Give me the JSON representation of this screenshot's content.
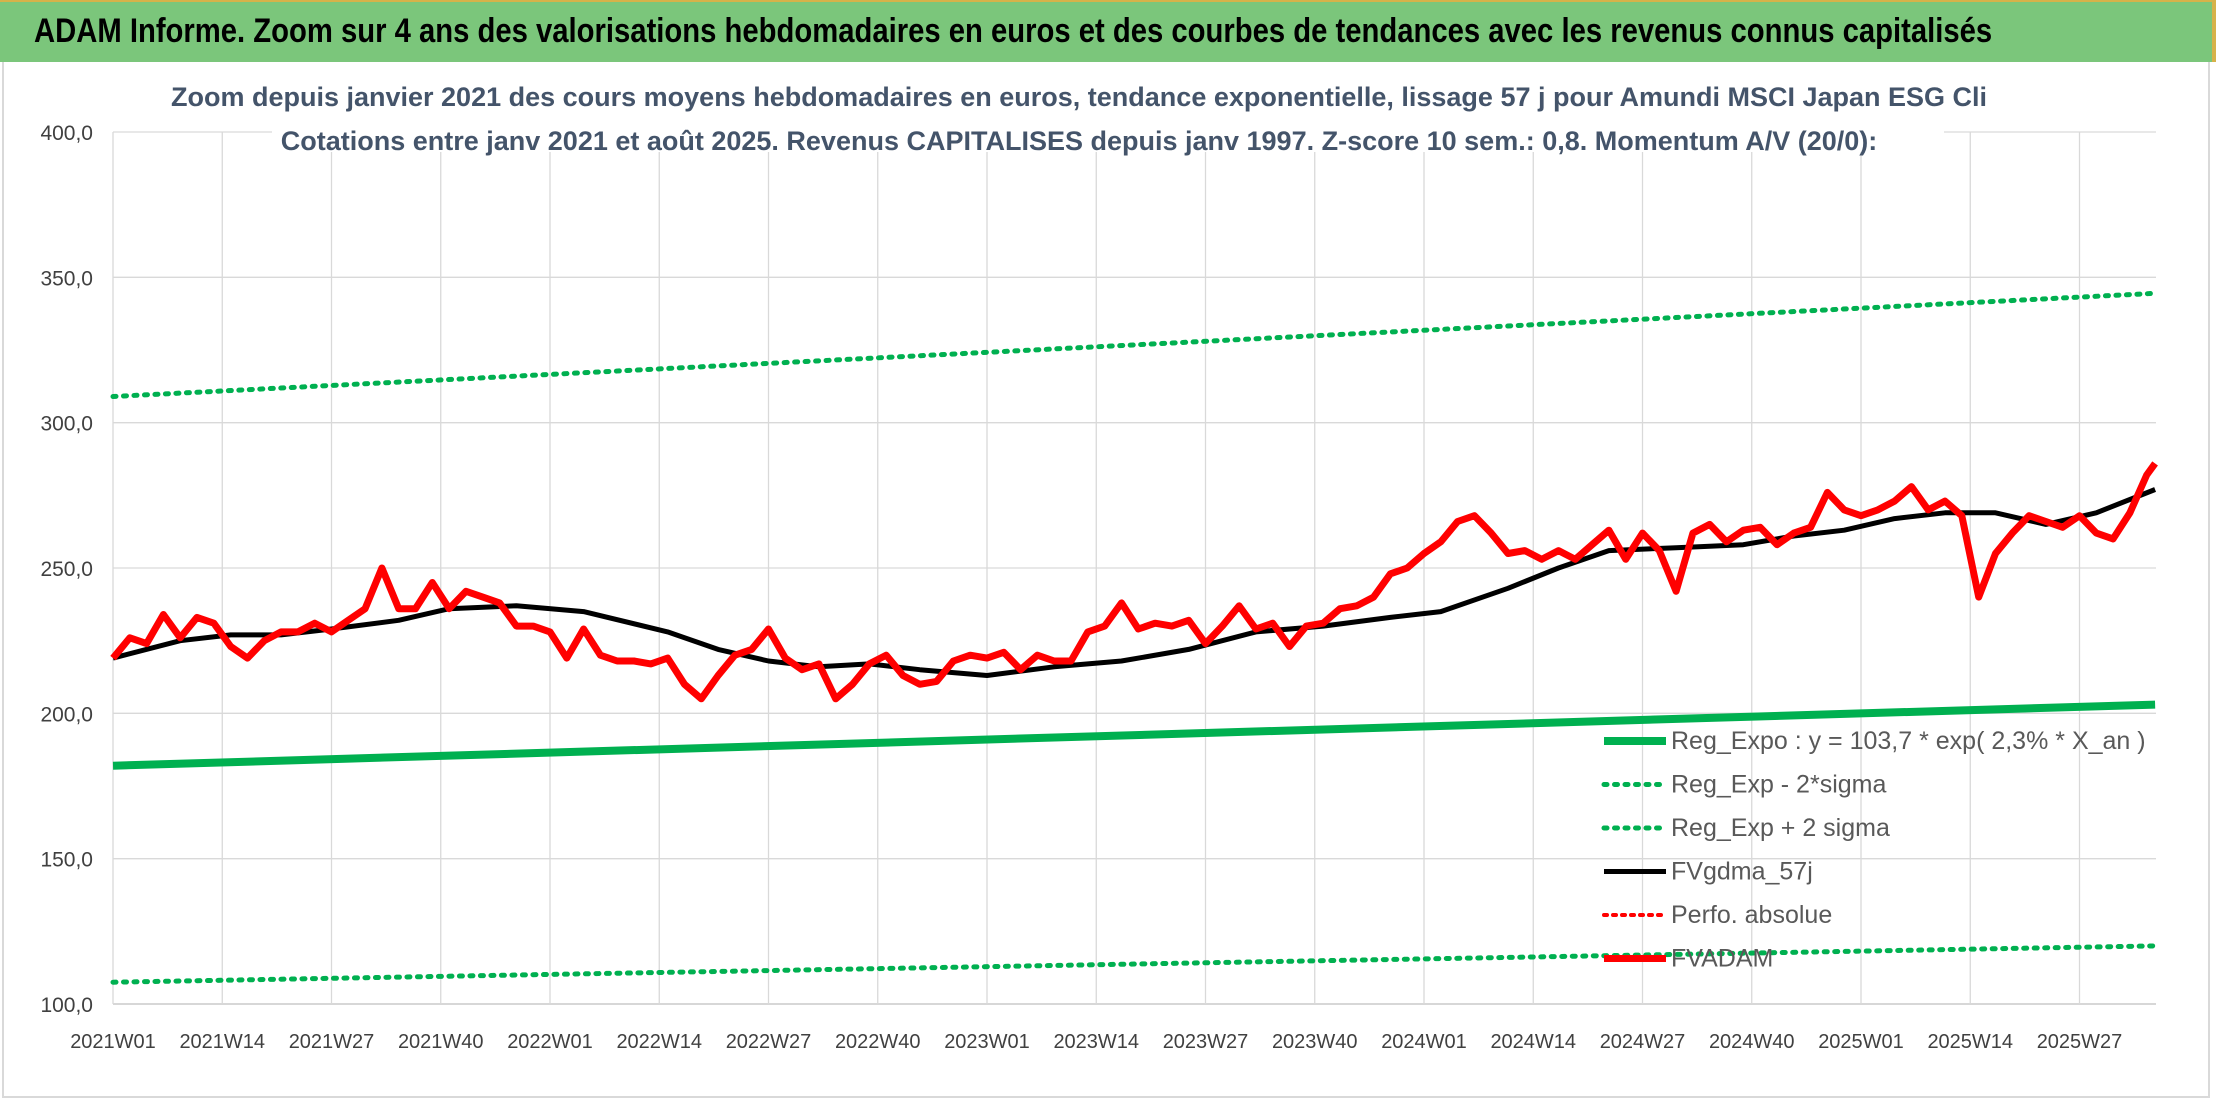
{
  "banner": {
    "title": "ADAM Informe. Zoom sur 4 ans des valorisations hebdomadaires en euros et des courbes de tendances avec les revenus connus capitalisés"
  },
  "colors": {
    "banner_bg": "#7bc67b",
    "trend_green": "#00b050",
    "price_red": "#ff0000",
    "smooth_black": "#000000",
    "title_text": "#44546a"
  },
  "chart_data": {
    "type": "line",
    "title_line1": "Zoom depuis janvier 2021 des cours moyens hebdomadaires en euros, tendance exponentielle, lissage 57 j pour Amundi MSCI Japan ESG Cli",
    "title_line2": "Cotations entre janv 2021 et août 2025. Revenus CAPITALISES depuis janv 1997. Z-score 10 sem.: 0,8. Momentum A/V (20/0):",
    "ylim": [
      100,
      400
    ],
    "yticks": [
      "100,0",
      "150,0",
      "200,0",
      "250,0",
      "300,0",
      "350,0",
      "400,0"
    ],
    "x_tick_labels": [
      "2021W01",
      "2021W14",
      "2021W27",
      "2021W40",
      "2022W01",
      "2022W14",
      "2022W27",
      "2022W40",
      "2023W01",
      "2023W14",
      "2023W27",
      "2023W40",
      "2024W01",
      "2024W14",
      "2024W27",
      "2024W40",
      "2025W01",
      "2025W14",
      "2025W27"
    ],
    "grid": true,
    "legend_position": "bottom-right",
    "x_weeks_per_tick": 13,
    "total_weeks": 243,
    "legend": [
      {
        "label": "Reg_Expo : y = 103,7 * exp( 2,3% *  X_an )",
        "style": "thick-green"
      },
      {
        "label": "Reg_Exp - 2*sigma",
        "style": "dotted-green"
      },
      {
        "label": "Reg_Exp + 2 sigma",
        "style": "dotted-green"
      },
      {
        "label": "FVgdma_57j",
        "style": "solid-black"
      },
      {
        "label": "Perfo. absolue",
        "style": "dotted-red"
      },
      {
        "label": "FVADAM",
        "style": "thick-red"
      }
    ],
    "series": [
      {
        "name": "Reg_Expo : y = 103,7 * exp( 2,3% *  X_an )",
        "x_weeks": [
          0,
          243
        ],
        "values": [
          182,
          203
        ]
      },
      {
        "name": "Reg_Exp - 2*sigma",
        "x_weeks": [
          0,
          243
        ],
        "values": [
          107.5,
          120
        ]
      },
      {
        "name": "Reg_Exp + 2 sigma",
        "x_weeks": [
          0,
          243
        ],
        "values": [
          309,
          344.5
        ]
      },
      {
        "name": "FVgdma_57j",
        "x_weeks": [
          0,
          8,
          14,
          20,
          26,
          34,
          40,
          48,
          56,
          66,
          72,
          78,
          84,
          90,
          96,
          104,
          112,
          120,
          128,
          136,
          144,
          152,
          158,
          166,
          172,
          178,
          186,
          194,
          200,
          206,
          212,
          218,
          224,
          230,
          236,
          243
        ],
        "values": [
          219,
          225,
          227,
          227,
          229,
          232,
          236,
          237,
          235,
          228,
          222,
          218,
          216,
          217,
          215,
          213,
          216,
          218,
          222,
          228,
          230,
          233,
          235,
          243,
          250,
          256,
          257,
          258,
          261,
          263,
          267,
          269,
          269,
          265,
          269,
          277
        ]
      },
      {
        "name": "FVADAM",
        "x_weeks": [
          0,
          2,
          4,
          6,
          8,
          10,
          12,
          14,
          16,
          18,
          20,
          22,
          24,
          26,
          28,
          30,
          32,
          34,
          36,
          38,
          40,
          42,
          44,
          46,
          48,
          50,
          52,
          54,
          56,
          58,
          60,
          62,
          64,
          66,
          68,
          70,
          72,
          74,
          76,
          78,
          80,
          82,
          84,
          86,
          88,
          90,
          92,
          94,
          96,
          98,
          100,
          102,
          104,
          106,
          108,
          110,
          112,
          114,
          116,
          118,
          120,
          122,
          124,
          126,
          128,
          130,
          132,
          134,
          136,
          138,
          140,
          142,
          144,
          146,
          148,
          150,
          152,
          154,
          156,
          158,
          160,
          162,
          164,
          166,
          168,
          170,
          172,
          174,
          176,
          178,
          180,
          182,
          184,
          186,
          188,
          190,
          192,
          194,
          196,
          198,
          200,
          202,
          204,
          206,
          208,
          210,
          212,
          214,
          216,
          218,
          220,
          222,
          224,
          226,
          228,
          230,
          232,
          234,
          236,
          238,
          240,
          242,
          243
        ],
        "values": [
          219,
          226,
          224,
          234,
          226,
          233,
          231,
          223,
          219,
          225,
          228,
          228,
          231,
          228,
          232,
          236,
          250,
          236,
          236,
          245,
          236,
          242,
          240,
          238,
          230,
          230,
          228,
          219,
          229,
          220,
          218,
          218,
          217,
          219,
          210,
          205,
          213,
          220,
          222,
          229,
          219,
          215,
          217,
          205,
          210,
          217,
          220,
          213,
          210,
          211,
          218,
          220,
          219,
          221,
          215,
          220,
          218,
          218,
          228,
          230,
          238,
          229,
          231,
          230,
          232,
          224,
          230,
          237,
          229,
          231,
          223,
          230,
          231,
          236,
          237,
          240,
          248,
          250,
          255,
          259,
          266,
          268,
          262,
          255,
          256,
          253,
          256,
          253,
          258,
          263,
          253,
          262,
          256,
          242,
          262,
          265,
          259,
          263,
          264,
          258,
          262,
          264,
          276,
          270,
          268,
          270,
          273,
          278,
          270,
          273,
          268,
          240,
          255,
          262,
          268,
          266,
          264,
          268,
          262,
          260,
          269,
          282,
          286
        ]
      }
    ]
  }
}
